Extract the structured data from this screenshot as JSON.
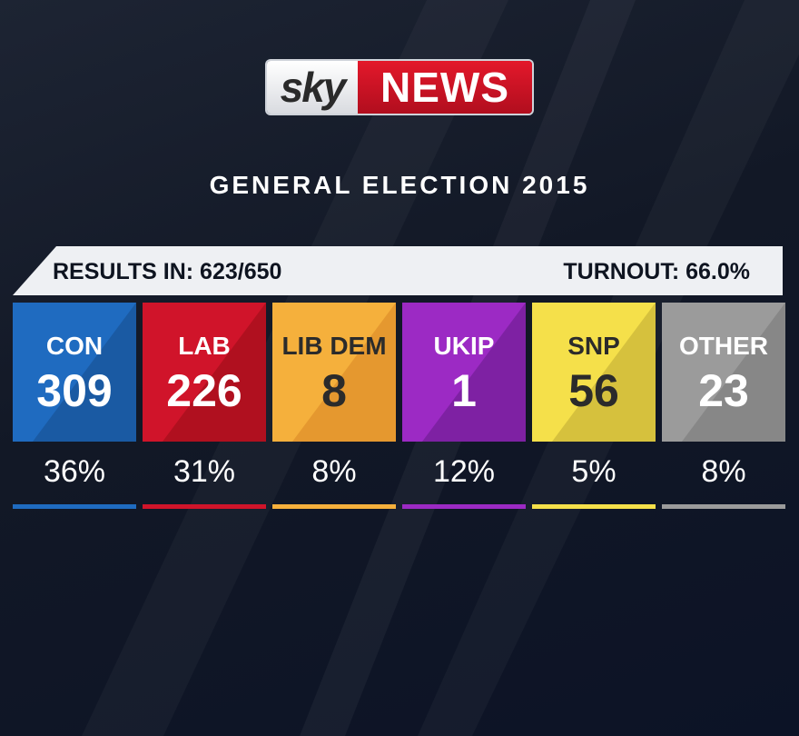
{
  "logo": {
    "sky": "sky",
    "news": "NEWS"
  },
  "title": "GENERAL ELECTION 2015",
  "results_in": "RESULTS IN: 623/650",
  "turnout": "TURNOUT: 66.0%",
  "chart_data": {
    "type": "table",
    "title": "GENERAL ELECTION 2015",
    "categories": [
      "CON",
      "LAB",
      "LIB DEM",
      "UKIP",
      "SNP",
      "OTHER"
    ],
    "series": [
      {
        "name": "seats",
        "values": [
          309,
          226,
          8,
          1,
          56,
          23
        ]
      },
      {
        "name": "vote share",
        "values": [
          "36%",
          "31%",
          "8%",
          "12%",
          "5%",
          "8%"
        ]
      }
    ]
  },
  "parties": [
    {
      "name": "CON",
      "seats": "309",
      "share": "36%",
      "color": "#1f6bc0",
      "shade": "#1a5aa3",
      "text": "#ffffff"
    },
    {
      "name": "LAB",
      "seats": "226",
      "share": "31%",
      "color": "#d0142a",
      "shade": "#b0101f",
      "text": "#ffffff"
    },
    {
      "name": "LIB DEM",
      "seats": "8",
      "share": "8%",
      "color": "#f5b03c",
      "shade": "#e5982f",
      "text": "#2b2b2b"
    },
    {
      "name": "UKIP",
      "seats": "1",
      "share": "12%",
      "color": "#9c2ac4",
      "shade": "#7e21a3",
      "text": "#ffffff"
    },
    {
      "name": "SNP",
      "seats": "56",
      "share": "5%",
      "color": "#f5e04a",
      "shade": "#d6c13d",
      "text": "#2b2b2b"
    },
    {
      "name": "OTHER",
      "seats": "23",
      "share": "8%",
      "color": "#9b9b9b",
      "shade": "#878787",
      "text": "#ffffff"
    }
  ]
}
